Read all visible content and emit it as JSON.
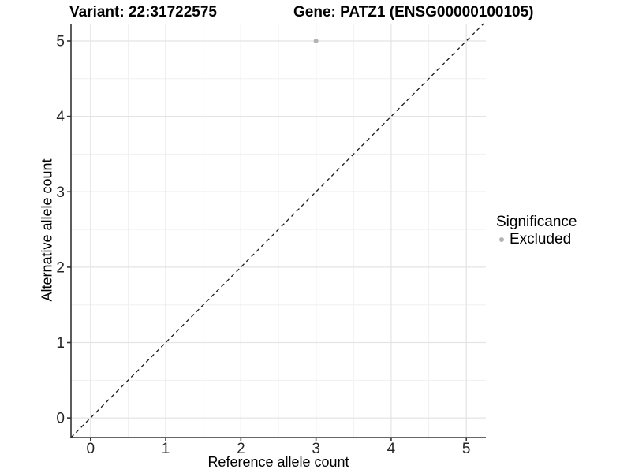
{
  "titles": {
    "variant": "Variant: 22:31722575",
    "gene": "Gene: PATZ1 (ENSG00000100105)"
  },
  "chart_data": {
    "type": "scatter",
    "xlabel": "Reference allele count",
    "ylabel": "Alternative allele count",
    "xlim": [
      -0.26,
      5.26
    ],
    "ylim": [
      -0.26,
      5.23
    ],
    "x_ticks": [
      0,
      1,
      2,
      3,
      4,
      5
    ],
    "y_ticks": [
      0,
      1,
      2,
      3,
      4,
      5
    ],
    "x_minor_gridlines": [
      0.5,
      1.5,
      2.5,
      3.5,
      4.5
    ],
    "y_minor_gridlines": [
      0.5,
      1.5,
      2.5,
      3.5,
      4.5
    ],
    "grid": true,
    "points": [
      {
        "x": 3,
        "y": 5,
        "significance": "Excluded",
        "color": "#B3B3B3"
      }
    ],
    "reference_line": {
      "type": "identity",
      "style": "dashed",
      "color": "#1a1a1a"
    },
    "legend": {
      "title": "Significance",
      "position": "right",
      "entries": [
        {
          "label": "Excluded",
          "color": "#B3B3B3",
          "marker": "circle"
        }
      ]
    }
  },
  "colors": {
    "background": "#ffffff",
    "major_grid": "#e4e4e4",
    "minor_grid": "#f0f0f0",
    "axis_line": "#333333",
    "tick_label": "#262626",
    "point": "#B3B3B3"
  }
}
